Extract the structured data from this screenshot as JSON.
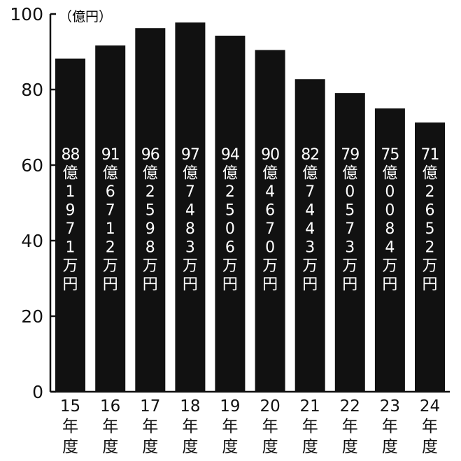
{
  "chart_data": {
    "type": "bar",
    "unit_label": "（億円）",
    "categories": [
      [
        "15",
        "年",
        "度"
      ],
      [
        "16",
        "年",
        "度"
      ],
      [
        "17",
        "年",
        "度"
      ],
      [
        "18",
        "年",
        "度"
      ],
      [
        "19",
        "年",
        "度"
      ],
      [
        "20",
        "年",
        "度"
      ],
      [
        "21",
        "年",
        "度"
      ],
      [
        "22",
        "年",
        "度"
      ],
      [
        "23",
        "年",
        "度"
      ],
      [
        "24",
        "年",
        "度"
      ]
    ],
    "values": [
      88.1971,
      91.6712,
      96.2598,
      97.7483,
      94.2506,
      90.467,
      82.7443,
      79.0573,
      75.0084,
      71.2652
    ],
    "data_labels": [
      [
        "88",
        "億",
        "1",
        "9",
        "7",
        "1",
        "万",
        "円"
      ],
      [
        "91",
        "億",
        "6",
        "7",
        "1",
        "2",
        "万",
        "円"
      ],
      [
        "96",
        "億",
        "2",
        "5",
        "9",
        "8",
        "万",
        "円"
      ],
      [
        "97",
        "億",
        "7",
        "4",
        "8",
        "3",
        "万",
        "円"
      ],
      [
        "94",
        "億",
        "2",
        "5",
        "0",
        "6",
        "万",
        "円"
      ],
      [
        "90",
        "億",
        "4",
        "6",
        "7",
        "0",
        "万",
        "円"
      ],
      [
        "82",
        "億",
        "7",
        "4",
        "4",
        "3",
        "万",
        "円"
      ],
      [
        "79",
        "億",
        "0",
        "5",
        "7",
        "3",
        "万",
        "円"
      ],
      [
        "75",
        "億",
        "0",
        "0",
        "8",
        "4",
        "万",
        "円"
      ],
      [
        "71",
        "億",
        "2",
        "6",
        "5",
        "2",
        "万",
        "円"
      ]
    ],
    "yticks": [
      "0",
      "20",
      "40",
      "60",
      "80",
      "100"
    ],
    "ylim": [
      0,
      100
    ],
    "grid": false,
    "colors": {
      "bar": "#111111",
      "label": "#ffffff",
      "axis": "#111111",
      "background": "#ffffff"
    }
  }
}
